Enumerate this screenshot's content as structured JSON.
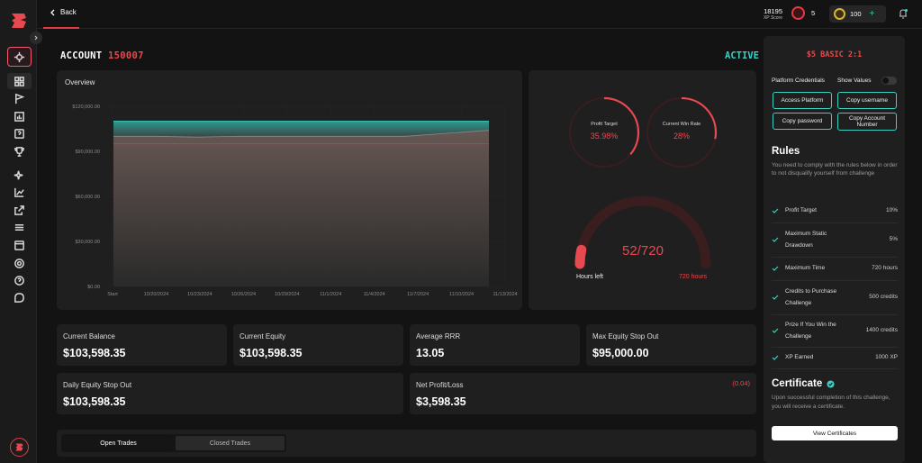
{
  "topbar": {
    "back_label": "Back",
    "xp_value": "18195",
    "xp_label": "XP Score",
    "tokens_count": "5",
    "coins_count": "100"
  },
  "account": {
    "label": "ACCOUNT",
    "number": "150007",
    "status": "ACTIVE"
  },
  "overview": {
    "title": "Overview"
  },
  "chart_data": {
    "type": "area",
    "title": "Overview",
    "x": [
      "Start",
      "10/20/2024",
      "10/23/2024",
      "10/26/2024",
      "10/29/2024",
      "11/1/2024",
      "11/4/2024",
      "11/7/2024",
      "11/10/2024",
      "11/13/2024"
    ],
    "y_ticks": [
      "$120,000.00",
      "$90,000.00",
      "$60,000.00",
      "$30,000.00",
      "$0.00"
    ],
    "ylim": [
      0,
      120000
    ],
    "series": [
      {
        "name": "",
        "color": "#3ad0c2",
        "values": [
          110000,
          110000,
          110000,
          110000,
          110000,
          110000,
          110000,
          110000,
          110000,
          110000
        ]
      },
      {
        "name": "",
        "color": "#8a8a8a",
        "values": [
          100000,
          100000,
          99500,
          100000,
          100000,
          100000,
          100000,
          100000,
          102000,
          104000
        ]
      },
      {
        "name": "",
        "color": "#b94a4a",
        "values": [
          95000,
          95000,
          95000,
          95000,
          95000,
          95000,
          95000,
          95000,
          95000,
          95000
        ]
      }
    ]
  },
  "gauges": {
    "profit_target_label": "Profit Target",
    "profit_target_value": "35.98%",
    "profit_target_pct": 0.3598,
    "win_rate_label": "Current Win Rate",
    "win_rate_value": "28%",
    "win_rate_pct": 0.28,
    "hours_value": "52/720",
    "hours_fraction": 0.072,
    "hours_left_label": "Hours left",
    "hours_total_label": "720 hours"
  },
  "stats": {
    "current_balance_label": "Current Balance",
    "current_balance": "$103,598.35",
    "current_equity_label": "Current Equity",
    "current_equity": "$103,598.35",
    "avg_rrr_label": "Average RRR",
    "avg_rrr": "13.05",
    "max_equity_label": "Max Equity Stop Out",
    "max_equity": "$95,000.00",
    "daily_equity_label": "Daily Equity Stop Out",
    "daily_equity": "$103,598.35",
    "net_pl_label": "Net Profit/Loss",
    "net_pl": "$3,598.35",
    "net_pl_change": "(0.04)"
  },
  "trades_tabs": {
    "open": "Open Trades",
    "closed": "Closed Trades"
  },
  "right_panel": {
    "plan_title": "$5 BASIC 2:1",
    "credentials_label": "Platform Credentials",
    "show_values_label": "Show Values",
    "access_platform": "Access Platform",
    "copy_username": "Copy username",
    "copy_password": "Copy password",
    "copy_account_number": "Copy Account Number",
    "rules_title": "Rules",
    "rules_desc": "You need to comply with the rules below in order to not disqualify yourself from challenge",
    "rules": [
      {
        "name": "Profit Target",
        "value": "10%"
      },
      {
        "name": "Maximum Static Drawdown",
        "value": "5%"
      },
      {
        "name": "Maximum Time",
        "value": "720 hours"
      },
      {
        "name": "Credits to Purchase Challenge",
        "value": "500 credits"
      },
      {
        "name": "Prize If You Win the Challenge",
        "value": "1400 credits"
      },
      {
        "name": "XP Earned",
        "value": "1000 XP"
      }
    ],
    "cert_title": "Certificate",
    "cert_desc": "Upon successful completion of this challenge, you will receive a certificate.",
    "view_certificates": "View Certificates"
  },
  "colors": {
    "accent_red": "#e8484f",
    "accent_teal": "#3ad0c2",
    "gold": "#d7b53a"
  }
}
